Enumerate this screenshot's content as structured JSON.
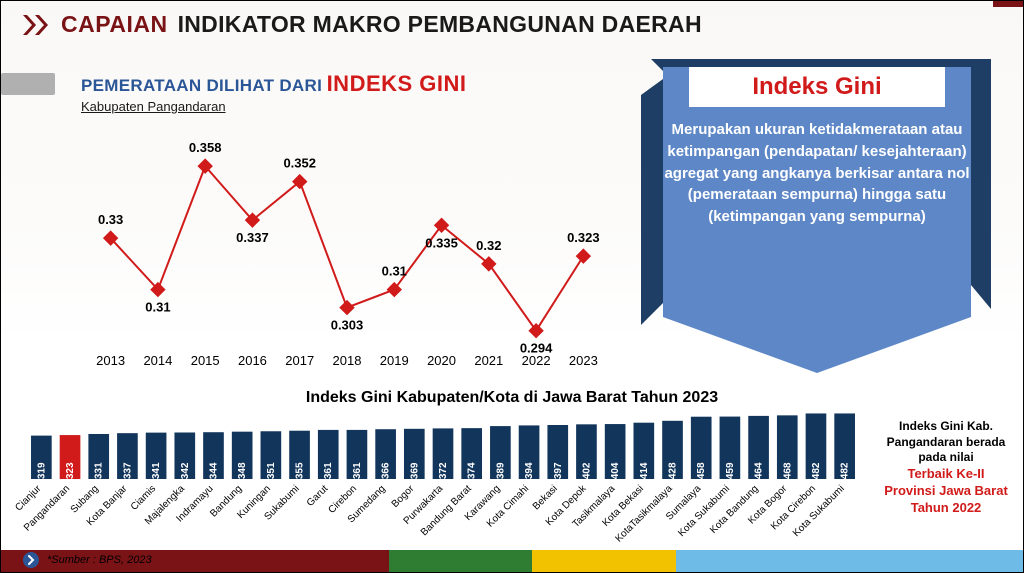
{
  "header": {
    "chevron_color": "#7a1316",
    "word1": "CAPAIAN",
    "word2": "INDIKATOR MAKRO PEMBANGUNAN DAERAH"
  },
  "subtitle": {
    "line1a": "PEMERATAAN DILIHAT DARI",
    "line1b": "INDEKS GINI",
    "line2": "Kabupaten Pangandaran"
  },
  "line_chart": {
    "type": "line",
    "years": [
      "2013",
      "2014",
      "2015",
      "2016",
      "2017",
      "2018",
      "2019",
      "2020",
      "2021",
      "2022",
      "2023"
    ],
    "values": [
      0.33,
      0.31,
      0.358,
      0.337,
      0.352,
      0.303,
      0.31,
      0.335,
      0.32,
      0.294,
      0.323
    ],
    "labels": [
      "0.33",
      "0.31",
      "0.358",
      "0.337",
      "0.352",
      "0.303",
      "0.31",
      "0.335",
      "0.32",
      "0.294",
      "0.323"
    ],
    "ylim": [
      0.29,
      0.36
    ],
    "line_color": "#d11a1a",
    "marker_color": "#d11a1a",
    "marker": "diamond",
    "marker_size": 7,
    "label_fontsize": 13,
    "x_label_fontsize": 13
  },
  "banner": {
    "title": "Indeks Gini",
    "body": "Merupakan ukuran ketidakmerataan atau ketimpangan (pendapatan/ kesejahteraan) agregat yang angkanya berkisar antara nol (pemerataan sempurna) hingga satu (ketimpangan yang sempurna)",
    "front_color": "#5d87c6",
    "back_color": "#1f3e66",
    "title_bg": "#ffffff",
    "title_color": "#d11a1a"
  },
  "bar_chart": {
    "type": "bar",
    "title": "Indeks Gini Kabupaten/Kota di Jawa Barat Tahun 2023",
    "ylim": [
      0,
      0.5
    ],
    "bar_color": "#12355b",
    "highlight_color": "#d11a1a",
    "highlight_index": 1,
    "value_text_color": "#ffffff",
    "value_fontsize": 10,
    "cat_fontsize": 10,
    "categories": [
      "Cianjur",
      "Pangandaran",
      "Subang",
      "Kota Banjar",
      "Ciamis",
      "Majalengka",
      "Indramayu",
      "Bandung",
      "Kuningan",
      "Sukabumi",
      "Garut",
      "Cirebon",
      "Sumedang",
      "Bogor",
      "Purwakarta",
      "Bandung Barat",
      "Karawang",
      "Kota Cimahi",
      "Bekasi",
      "Kota Depok",
      "Tasikmalaya",
      "Kota Bekasi",
      "KotaTasikmalaya",
      "Sumalaya",
      "Kota Sukabumi",
      "Kota Bandung",
      "Kota Bogor",
      "Kota Cirebon",
      "Kota Sukabumi"
    ],
    "values": [
      0.319,
      0.323,
      0.331,
      0.337,
      0.341,
      0.342,
      0.344,
      0.348,
      0.351,
      0.355,
      0.361,
      0.361,
      0.366,
      0.369,
      0.372,
      0.374,
      0.389,
      0.394,
      0.397,
      0.402,
      0.404,
      0.414,
      0.428,
      0.458,
      0.459,
      0.464,
      0.468,
      0.482,
      0.482
    ]
  },
  "ranking_note": {
    "line1": "Indeks Gini Kab. Pangandaran berada pada nilai",
    "line2": "Terbaik Ke-II",
    "line3": "Provinsi Jawa Barat Tahun 2022"
  },
  "footer": {
    "source": "*Sumber : BPS, 2023",
    "stripe_colors": [
      "#7a1316",
      "#2e7d32",
      "#f2c200",
      "#6fbbe8"
    ],
    "stripe_widths_pct": [
      38,
      14,
      14,
      34
    ]
  }
}
